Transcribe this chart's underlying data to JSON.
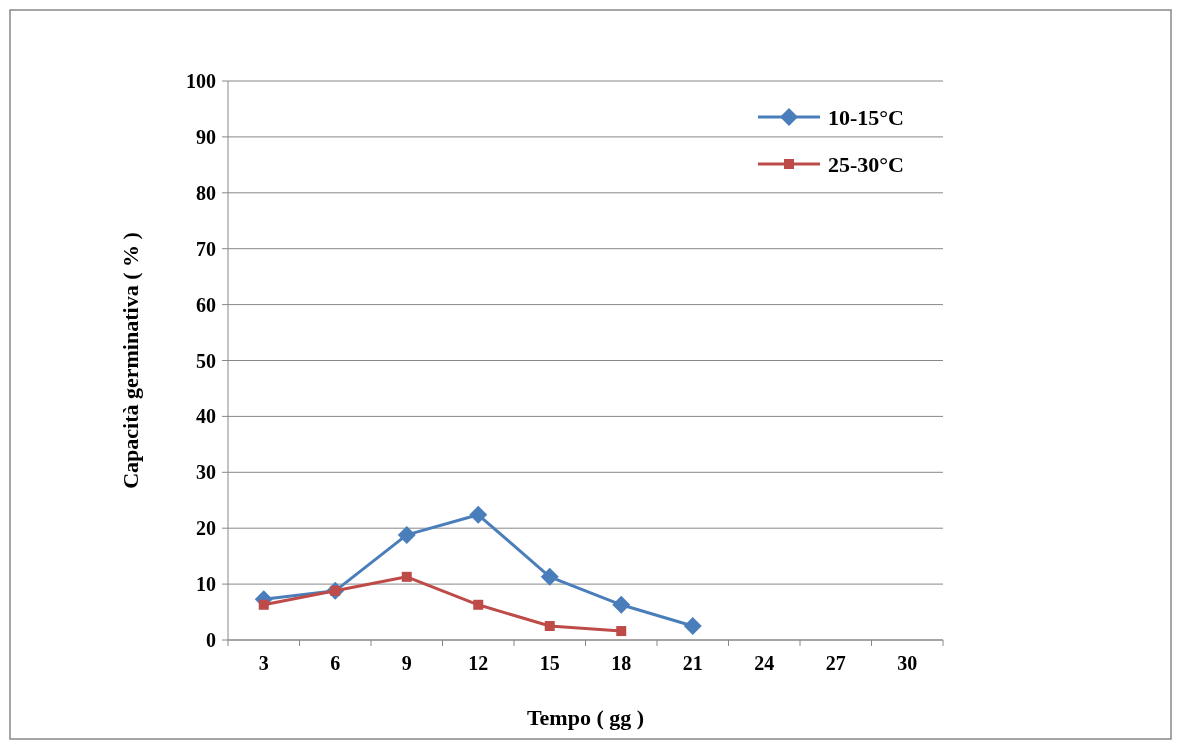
{
  "chart_data": {
    "type": "line",
    "xlabel": "Tempo ( gg )",
    "ylabel": "Capacità germinativa ( % )",
    "categories": [
      "3",
      "6",
      "9",
      "12",
      "15",
      "18",
      "21",
      "24",
      "27",
      "30"
    ],
    "series": [
      {
        "name": "10-15°C",
        "color": "#4a7ebb",
        "marker": "diamond",
        "values": [
          7.3,
          8.8,
          18.8,
          22.4,
          11.3,
          6.3,
          2.5,
          null,
          null,
          null
        ]
      },
      {
        "name": "25-30°C",
        "color": "#be4b48",
        "marker": "square",
        "values": [
          6.3,
          8.8,
          11.3,
          6.3,
          2.5,
          1.6,
          null,
          null,
          null,
          null
        ]
      }
    ],
    "ylim": [
      0,
      100
    ],
    "yticks": [
      0,
      10,
      20,
      30,
      40,
      50,
      60,
      70,
      80,
      90,
      100
    ],
    "grid": "y",
    "legend": "top right",
    "line_style": "solid"
  }
}
